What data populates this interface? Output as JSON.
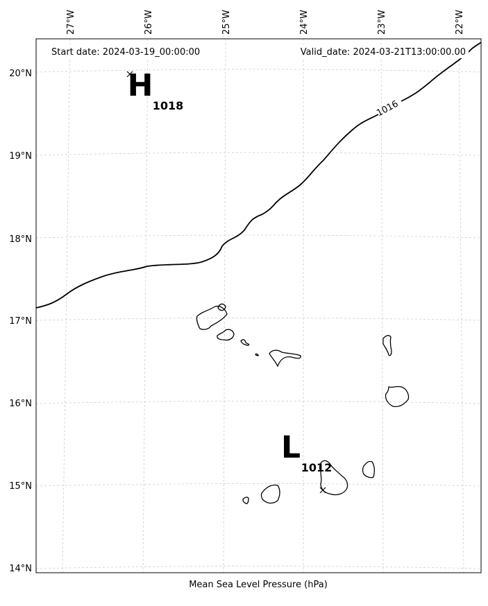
{
  "header": {
    "start_date": "Start date: 2024-03-19_00:00:00",
    "valid_date": "Valid_date: 2024-03-21T13:00:00.00"
  },
  "lon_ticks": [
    "27°W",
    "26°W",
    "25°W",
    "24°W",
    "23°W",
    "22°W"
  ],
  "lat_ticks": [
    "20°N",
    "19°N",
    "18°N",
    "17°N",
    "16°N",
    "15°N",
    "14°N"
  ],
  "high": {
    "letter": "H",
    "value": "1018"
  },
  "low": {
    "letter": "L",
    "value": "1012"
  },
  "isobars": [
    {
      "label": "1016"
    }
  ],
  "footer": {
    "caption": "Mean Sea Level Pressure (hPa)"
  }
}
